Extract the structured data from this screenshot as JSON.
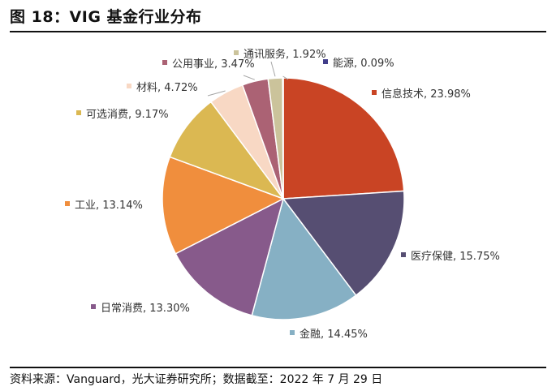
{
  "header": {
    "title": "图 18：VIG 基金行业分布"
  },
  "footer": {
    "source": "资料来源：Vanguard，光大证券研究所；数据截至：2022 年 7 月 29 日"
  },
  "chart_data": {
    "type": "pie",
    "title": "图 18：VIG 基金行业分布",
    "legend": "none",
    "slices": [
      {
        "name": "信息技术",
        "value": 23.98,
        "label": "信息技术, 23.98%",
        "color": "#c94424"
      },
      {
        "name": "医疗保健",
        "value": 15.75,
        "label": "医疗保健, 15.75%",
        "color": "#564e72"
      },
      {
        "name": "金融",
        "value": 14.45,
        "label": "金融, 14.45%",
        "color": "#86b0c4"
      },
      {
        "name": "日常消费",
        "value": 13.3,
        "label": "日常消费, 13.30%",
        "color": "#875a8b"
      },
      {
        "name": "工业",
        "value": 13.14,
        "label": "工业, 13.14%",
        "color": "#f08e3d"
      },
      {
        "name": "可选消费",
        "value": 9.17,
        "label": "可选消费, 9.17%",
        "color": "#dbb852"
      },
      {
        "name": "材料",
        "value": 4.72,
        "label": "材料, 4.72%",
        "color": "#f8d8c4"
      },
      {
        "name": "公用事业",
        "value": 3.47,
        "label": "公用事业, 3.47%",
        "color": "#ab6274"
      },
      {
        "name": "通讯服务",
        "value": 1.92,
        "label": "通讯服务, 1.92%",
        "color": "#cbc39b"
      },
      {
        "name": "能源",
        "value": 0.09,
        "label": "能源, 0.09%",
        "color": "#413e8a"
      }
    ]
  }
}
